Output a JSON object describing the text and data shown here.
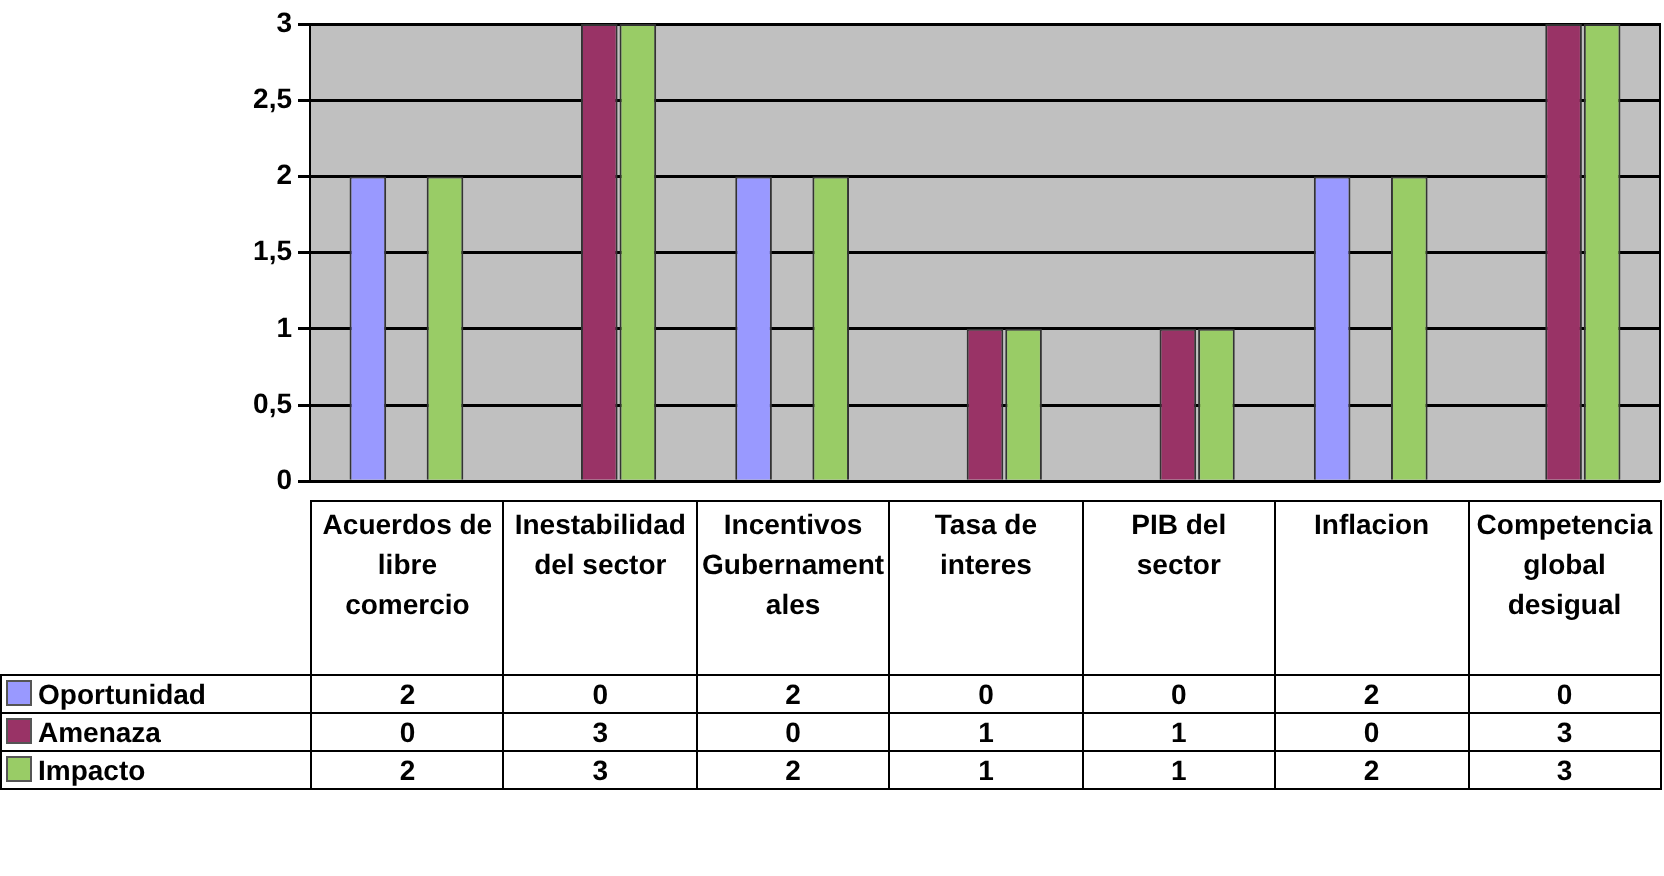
{
  "chart_data": {
    "type": "bar",
    "categories": [
      "Acuerdos de libre comercio",
      "Inestabilidad del sector",
      "Incentivos Gubernamentales",
      "Tasa de interes",
      "PIB del sector",
      "Inflacion",
      "Competencia global desigual"
    ],
    "series": [
      {
        "name": "Oportunidad",
        "color": "#9999ff",
        "values": [
          2,
          0,
          2,
          0,
          0,
          2,
          0
        ]
      },
      {
        "name": "Amenaza",
        "color": "#993366",
        "values": [
          0,
          3,
          0,
          1,
          1,
          0,
          3
        ]
      },
      {
        "name": "Impacto",
        "color": "#99cc66",
        "values": [
          2,
          3,
          2,
          1,
          1,
          2,
          3
        ]
      }
    ],
    "ylim": [
      0,
      3
    ],
    "yticks": [
      0,
      {
        "value": 0.5,
        "label": "0,5"
      },
      1,
      {
        "value": 1.5,
        "label": "1,5"
      },
      2,
      {
        "value": 2.5,
        "label": "2,5"
      },
      3
    ],
    "grid": "y",
    "legend": "bottom",
    "data_labels": true
  }
}
